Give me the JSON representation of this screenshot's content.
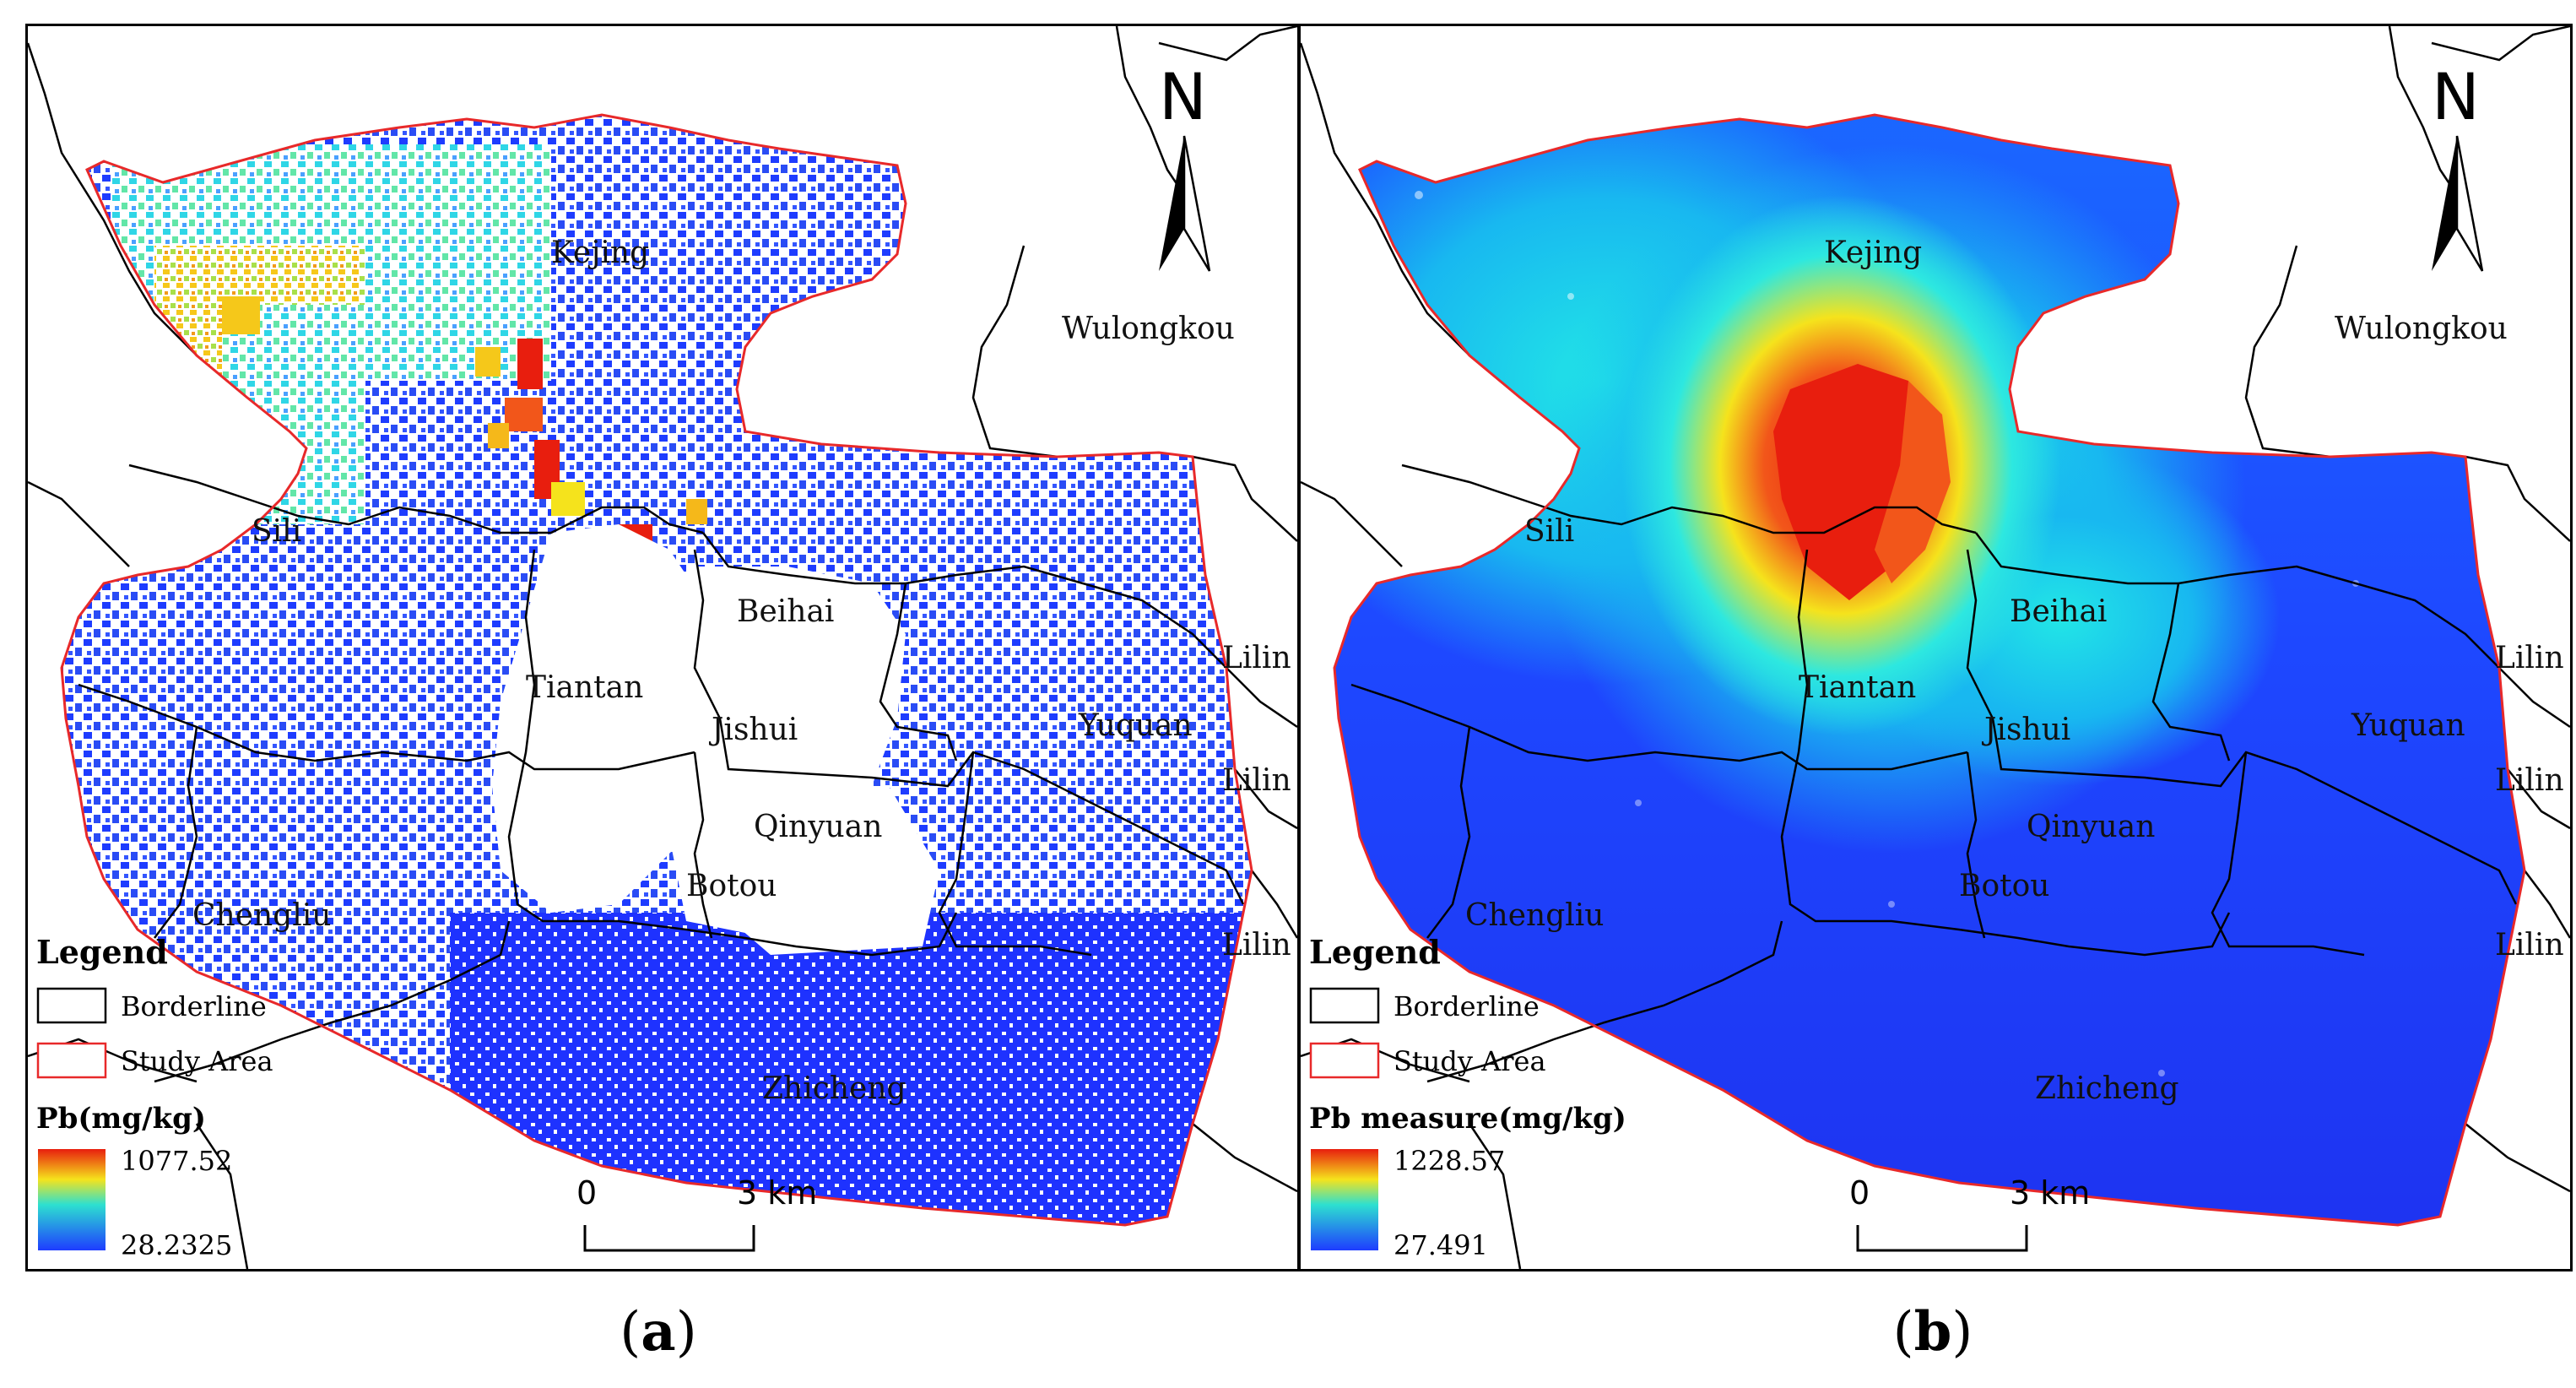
{
  "panels": [
    {
      "id": "a",
      "caption_label": "a",
      "legend": {
        "title": "Legend",
        "borderline_label": "Borderline",
        "study_area_label": "Study Area",
        "variable_label": "Pb(mg/kg)",
        "max_value": "1077.52",
        "min_value": "28.2325"
      },
      "places": [
        "Kejing",
        "Wulongkou",
        "Sili",
        "Beihai",
        "Tiantan",
        "Jishui",
        "Yuquan",
        "Lilin",
        "Lilin",
        "Lilin",
        "Qinyuan",
        "Botou",
        "Chengliu",
        "Zhicheng"
      ],
      "scale": {
        "zero": "0",
        "distance": "3 km"
      },
      "north": "N"
    },
    {
      "id": "b",
      "caption_label": "b",
      "legend": {
        "title": "Legend",
        "borderline_label": "Borderline",
        "study_area_label": "Study Area",
        "variable_label": "Pb measure(mg/kg)",
        "max_value": "1228.57",
        "min_value": "27.491"
      },
      "places": [
        "Kejing",
        "Wulongkou",
        "Sili",
        "Beihai",
        "Tiantan",
        "Jishui",
        "Yuquan",
        "Lilin",
        "Lilin",
        "Lilin",
        "Qinyuan",
        "Botou",
        "Chengliu",
        "Zhicheng"
      ],
      "scale": {
        "zero": "0",
        "distance": "3 km"
      },
      "north": "N"
    }
  ],
  "colors": {
    "border": "#000000",
    "study_area": "#e8292a",
    "ramp_high": "#e81e0e",
    "ramp_mid": "#f5e31c",
    "ramp_low1": "#2de0d0",
    "ramp_low2": "#1e3cff"
  }
}
